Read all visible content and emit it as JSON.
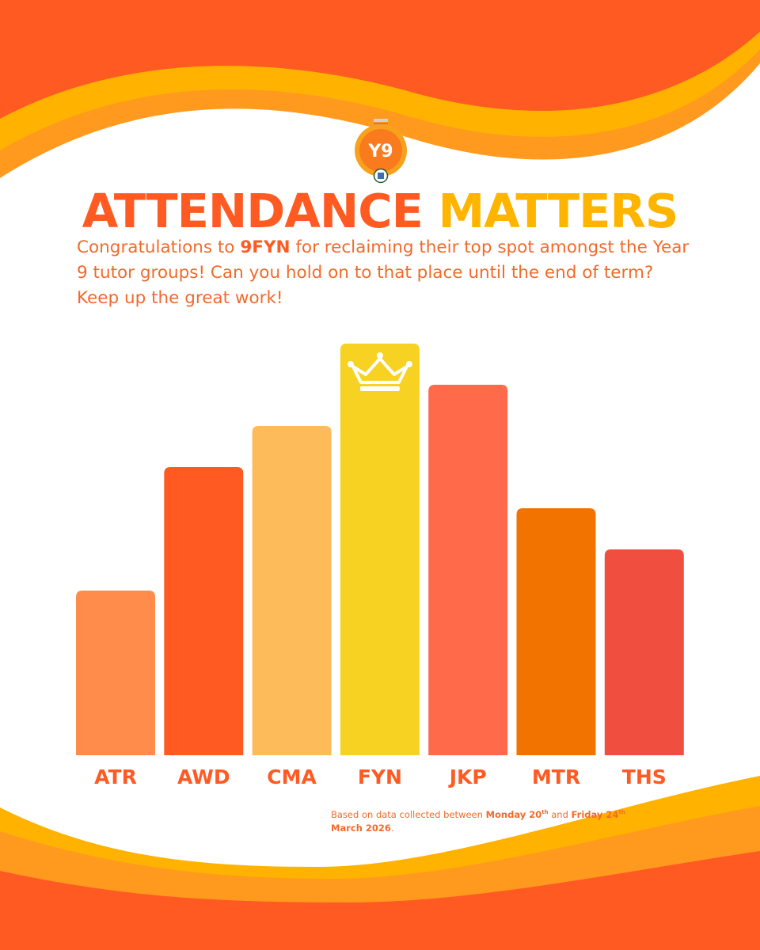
{
  "brand": {
    "logo_text": "Y9",
    "colors": {
      "orange_red": "#ff5a22",
      "amber": "#ffb400",
      "text_orange": "#f26a2a",
      "crown": "#ffffff"
    }
  },
  "header": {
    "title_part1": "ATTENDANCE",
    "title_part2": "MATTERS"
  },
  "intro": {
    "before": "Congratulations to ",
    "highlight": "9FYN",
    "after": " for reclaiming their top spot amongst the Year 9 tutor groups! Can you hold on to that place until the end of term? Keep up the great work!"
  },
  "chart_data": {
    "type": "bar",
    "categories": [
      "ATR",
      "AWD",
      "CMA",
      "FYN",
      "JKP",
      "MTR",
      "THS"
    ],
    "values": [
      4,
      7,
      8,
      10,
      9,
      6,
      5
    ],
    "ylim": [
      0,
      10
    ],
    "bar_colors": [
      "#ff8c4a",
      "#ff5a22",
      "#fdbb5a",
      "#f7d222",
      "#ff6b4a",
      "#f27300",
      "#f04e3e"
    ],
    "winner_icon": "crown-icon",
    "winner": "FYN"
  },
  "footer": {
    "note_prefix": "Based on data collected between ",
    "start_day": "Monday 20",
    "start_suffix": "th",
    "between": " and ",
    "end_day": "Friday 24",
    "end_suffix": "th",
    "month_year": "March 2026",
    "end_punct": "."
  }
}
